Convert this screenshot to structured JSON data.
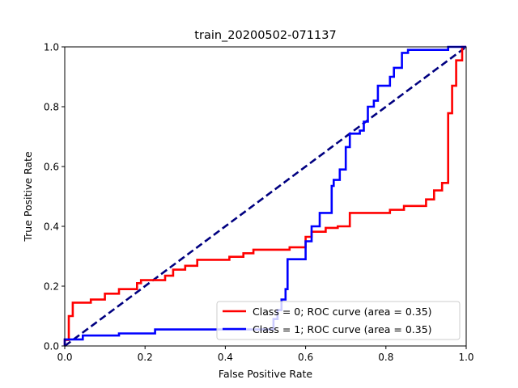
{
  "chart_data": {
    "type": "line",
    "title": "train_20200502-071137",
    "xlabel": "False Positive Rate",
    "ylabel": "True Positive Rate",
    "xlim": [
      0.0,
      1.0
    ],
    "ylim": [
      0.0,
      1.0
    ],
    "xticks": [
      "0.0",
      "0.2",
      "0.4",
      "0.6",
      "0.8",
      "1.0"
    ],
    "yticks": [
      "0.0",
      "0.2",
      "0.4",
      "0.6",
      "0.8",
      "1.0"
    ],
    "grid": false,
    "legend_position": "lower-right",
    "series": [
      {
        "name": "Class = 0; ROC curve (area =  0.35)",
        "color": "#ff0000",
        "step": true,
        "x": [
          0.0,
          0.0,
          0.01,
          0.01,
          0.02,
          0.02,
          0.065,
          0.065,
          0.1,
          0.1,
          0.135,
          0.135,
          0.18,
          0.18,
          0.19,
          0.19,
          0.25,
          0.25,
          0.27,
          0.27,
          0.3,
          0.3,
          0.33,
          0.33,
          0.41,
          0.41,
          0.445,
          0.445,
          0.47,
          0.47,
          0.56,
          0.56,
          0.6,
          0.6,
          0.615,
          0.615,
          0.65,
          0.65,
          0.68,
          0.68,
          0.71,
          0.71,
          0.81,
          0.81,
          0.845,
          0.845,
          0.9,
          0.9,
          0.92,
          0.92,
          0.94,
          0.94,
          0.955,
          0.955,
          0.965,
          0.965,
          0.975,
          0.975,
          0.99,
          0.99,
          1.0
        ],
        "y": [
          0.0,
          0.02,
          0.02,
          0.1,
          0.1,
          0.145,
          0.145,
          0.155,
          0.155,
          0.175,
          0.175,
          0.19,
          0.19,
          0.21,
          0.21,
          0.22,
          0.22,
          0.235,
          0.235,
          0.255,
          0.255,
          0.268,
          0.268,
          0.288,
          0.288,
          0.298,
          0.298,
          0.31,
          0.31,
          0.322,
          0.322,
          0.33,
          0.33,
          0.365,
          0.365,
          0.382,
          0.382,
          0.395,
          0.395,
          0.4,
          0.4,
          0.445,
          0.445,
          0.455,
          0.455,
          0.468,
          0.468,
          0.49,
          0.49,
          0.52,
          0.52,
          0.545,
          0.545,
          0.778,
          0.778,
          0.87,
          0.87,
          0.955,
          0.955,
          1.0,
          1.0
        ]
      },
      {
        "name": "Class = 1; ROC curve (area =  0.35)",
        "color": "#0000ff",
        "step": true,
        "x": [
          0.0,
          0.0,
          0.045,
          0.045,
          0.135,
          0.135,
          0.225,
          0.225,
          0.27,
          0.27,
          0.52,
          0.52,
          0.53,
          0.53,
          0.54,
          0.54,
          0.55,
          0.55,
          0.555,
          0.555,
          0.6,
          0.6,
          0.615,
          0.615,
          0.635,
          0.635,
          0.665,
          0.665,
          0.67,
          0.67,
          0.685,
          0.685,
          0.7,
          0.7,
          0.71,
          0.71,
          0.735,
          0.735,
          0.745,
          0.745,
          0.755,
          0.755,
          0.77,
          0.77,
          0.78,
          0.78,
          0.81,
          0.81,
          0.82,
          0.82,
          0.84,
          0.84,
          0.855,
          0.855,
          0.9,
          0.9,
          0.955,
          0.955,
          1.0
        ],
        "y": [
          0.0,
          0.022,
          0.022,
          0.035,
          0.035,
          0.042,
          0.042,
          0.055,
          0.055,
          0.055,
          0.055,
          0.09,
          0.09,
          0.12,
          0.12,
          0.155,
          0.155,
          0.19,
          0.19,
          0.29,
          0.29,
          0.35,
          0.35,
          0.4,
          0.4,
          0.445,
          0.445,
          0.535,
          0.535,
          0.555,
          0.555,
          0.59,
          0.59,
          0.665,
          0.665,
          0.71,
          0.71,
          0.72,
          0.72,
          0.75,
          0.75,
          0.8,
          0.8,
          0.82,
          0.82,
          0.87,
          0.87,
          0.9,
          0.9,
          0.93,
          0.93,
          0.98,
          0.98,
          0.99,
          0.99,
          0.99,
          0.99,
          1.0,
          1.0
        ]
      },
      {
        "name": "",
        "color": "#000080",
        "dashed": true,
        "x": [
          0.0,
          1.0
        ],
        "y": [
          0.0,
          1.0
        ]
      }
    ]
  }
}
